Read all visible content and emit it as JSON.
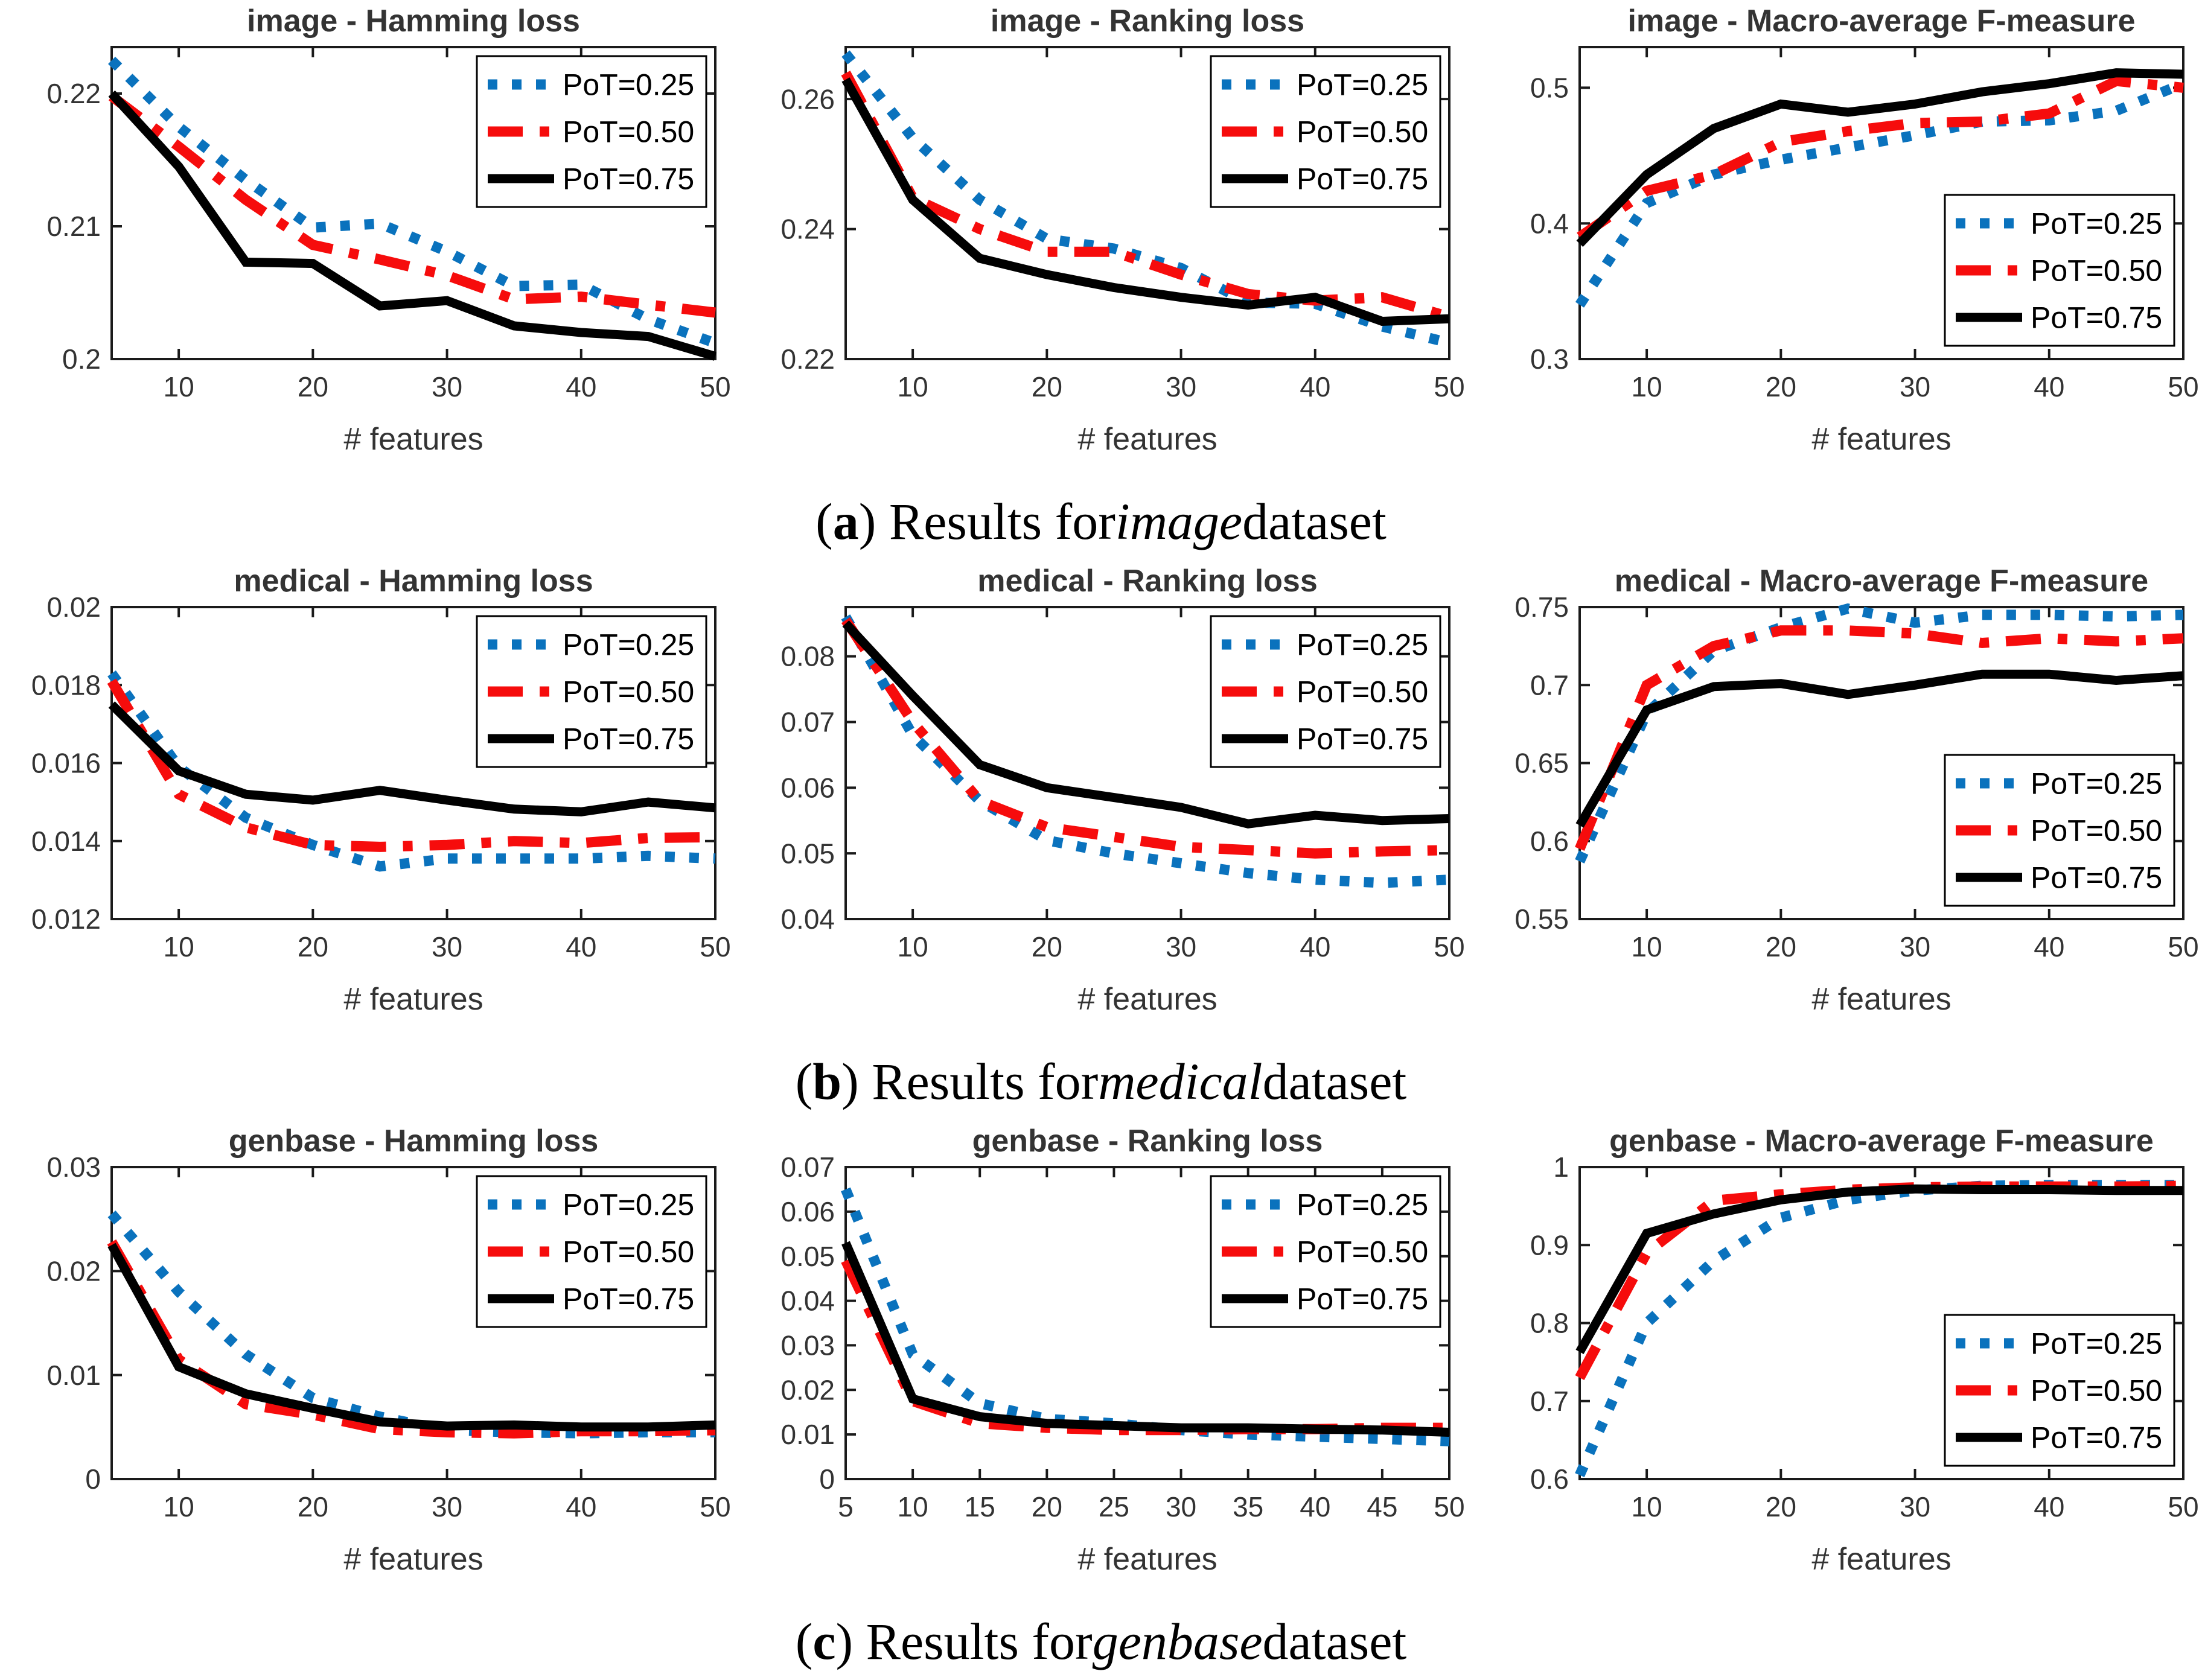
{
  "page": {
    "background": "#ffffff"
  },
  "colors": {
    "blue": "#0a72bd",
    "red": "#f60c0c",
    "black": "#000000",
    "axis": "#1a1a1a",
    "tick_text": "#333333"
  },
  "legend": {
    "entries": [
      {
        "label": "PoT=0.25",
        "color": "blue",
        "style": "dotted"
      },
      {
        "label": "PoT=0.50",
        "color": "red",
        "style": "dashdot"
      },
      {
        "label": "PoT=0.75",
        "color": "black",
        "style": "solid"
      }
    ]
  },
  "captions": [
    {
      "open": "(",
      "letter": "a",
      "mid": ") Results for ",
      "dataset": "image",
      "tail": " dataset"
    },
    {
      "open": "(",
      "letter": "b",
      "mid": ") Results for ",
      "dataset": "medical",
      "tail": " dataset"
    },
    {
      "open": "(",
      "letter": "c",
      "mid": ") Results for ",
      "dataset": "genbase",
      "tail": " dataset"
    }
  ],
  "chart_data": [
    {
      "type": "line",
      "title": "image - Hamming loss",
      "xlabel": "# features",
      "ylabel": "",
      "x": [
        5,
        10,
        15,
        20,
        25,
        30,
        35,
        40,
        45,
        50
      ],
      "xlim": [
        5,
        50
      ],
      "xticks": [
        10,
        20,
        30,
        40,
        50
      ],
      "xtick_labels": [
        "10",
        "20",
        "30",
        "40",
        "50"
      ],
      "ylim": [
        0.2,
        0.2235
      ],
      "yticks": [
        0.2,
        0.21,
        0.22
      ],
      "ytick_labels": [
        "0.2",
        "0.21",
        "0.22"
      ],
      "grid": false,
      "legend_position": "top-right",
      "series": [
        {
          "name": "PoT=0.25",
          "color": "blue",
          "style": "dotted",
          "values": [
            0.2225,
            0.2175,
            0.2135,
            0.2099,
            0.2102,
            0.2081,
            0.2055,
            0.2056,
            0.203,
            0.2012
          ]
        },
        {
          "name": "PoT=0.50",
          "color": "red",
          "style": "dashdot",
          "values": [
            0.2198,
            0.216,
            0.212,
            0.2086,
            0.2075,
            0.2063,
            0.2045,
            0.2047,
            0.2041,
            0.2035
          ]
        },
        {
          "name": "PoT=0.75",
          "color": "black",
          "style": "solid",
          "values": [
            0.22,
            0.2145,
            0.2073,
            0.2072,
            0.204,
            0.2044,
            0.2025,
            0.202,
            0.2017,
            0.2002
          ]
        }
      ]
    },
    {
      "type": "line",
      "title": "image - Ranking loss",
      "xlabel": "# features",
      "ylabel": "",
      "x": [
        5,
        10,
        15,
        20,
        25,
        30,
        35,
        40,
        45,
        50
      ],
      "xlim": [
        5,
        50
      ],
      "xticks": [
        10,
        20,
        30,
        40,
        50
      ],
      "xtick_labels": [
        "10",
        "20",
        "30",
        "40",
        "50"
      ],
      "ylim": [
        0.22,
        0.268
      ],
      "yticks": [
        0.22,
        0.24,
        0.26
      ],
      "ytick_labels": [
        "0.22",
        "0.24",
        "0.26"
      ],
      "grid": false,
      "legend_position": "top-right",
      "series": [
        {
          "name": "PoT=0.25",
          "color": "blue",
          "style": "dotted",
          "values": [
            0.267,
            0.254,
            0.2445,
            0.2385,
            0.237,
            0.234,
            0.2287,
            0.2285,
            0.225,
            0.2225
          ]
        },
        {
          "name": "PoT=0.50",
          "color": "red",
          "style": "dashdot",
          "values": [
            0.264,
            0.2448,
            0.24,
            0.2365,
            0.2365,
            0.233,
            0.23,
            0.229,
            0.2295,
            0.2265
          ]
        },
        {
          "name": "PoT=0.75",
          "color": "black",
          "style": "solid",
          "values": [
            0.263,
            0.2445,
            0.2355,
            0.233,
            0.231,
            0.2295,
            0.2283,
            0.2295,
            0.2258,
            0.2262
          ]
        }
      ]
    },
    {
      "type": "line",
      "title": "image - Macro-average F-measure",
      "xlabel": "# features",
      "ylabel": "",
      "x": [
        5,
        10,
        15,
        20,
        25,
        30,
        35,
        40,
        45,
        50
      ],
      "xlim": [
        5,
        50
      ],
      "xticks": [
        10,
        20,
        30,
        40,
        50
      ],
      "xtick_labels": [
        "10",
        "20",
        "30",
        "40",
        "50"
      ],
      "ylim": [
        0.3,
        0.53
      ],
      "yticks": [
        0.3,
        0.4,
        0.5
      ],
      "ytick_labels": [
        "0.3",
        "0.4",
        "0.5"
      ],
      "grid": false,
      "legend_position": "bottom-right",
      "series": [
        {
          "name": "PoT=0.25",
          "color": "blue",
          "style": "dotted",
          "values": [
            0.34,
            0.415,
            0.436,
            0.447,
            0.456,
            0.465,
            0.475,
            0.476,
            0.483,
            0.503
          ]
        },
        {
          "name": "PoT=0.50",
          "color": "red",
          "style": "dashdot",
          "values": [
            0.39,
            0.424,
            0.436,
            0.46,
            0.468,
            0.474,
            0.475,
            0.481,
            0.505,
            0.5
          ]
        },
        {
          "name": "PoT=0.75",
          "color": "black",
          "style": "solid",
          "values": [
            0.385,
            0.436,
            0.47,
            0.488,
            0.482,
            0.488,
            0.497,
            0.503,
            0.511,
            0.51
          ]
        }
      ]
    },
    {
      "type": "line",
      "title": "medical - Hamming loss",
      "xlabel": "# features",
      "ylabel": "",
      "x": [
        5,
        10,
        15,
        20,
        25,
        30,
        35,
        40,
        45,
        50
      ],
      "xlim": [
        5,
        50
      ],
      "xticks": [
        10,
        20,
        30,
        40,
        50
      ],
      "xtick_labels": [
        "10",
        "20",
        "30",
        "40",
        "50"
      ],
      "ylim": [
        0.012,
        0.02
      ],
      "yticks": [
        0.012,
        0.014,
        0.016,
        0.018,
        0.02
      ],
      "ytick_labels": [
        "0.012",
        "0.014",
        "0.016",
        "0.018",
        "0.02"
      ],
      "grid": false,
      "legend_position": "top-right",
      "series": [
        {
          "name": "PoT=0.25",
          "color": "blue",
          "style": "dotted",
          "values": [
            0.0183,
            0.0159,
            0.0146,
            0.0139,
            0.01335,
            0.01355,
            0.01355,
            0.01355,
            0.01362,
            0.01355
          ]
        },
        {
          "name": "PoT=0.50",
          "color": "red",
          "style": "dashdot",
          "values": [
            0.0181,
            0.0152,
            0.01435,
            0.0139,
            0.01385,
            0.0139,
            0.014,
            0.01395,
            0.01408,
            0.0141
          ]
        },
        {
          "name": "PoT=0.75",
          "color": "black",
          "style": "solid",
          "values": [
            0.0175,
            0.0158,
            0.0152,
            0.01505,
            0.0153,
            0.01505,
            0.01482,
            0.01475,
            0.015,
            0.01485
          ]
        }
      ]
    },
    {
      "type": "line",
      "title": "medical - Ranking loss",
      "xlabel": "# features",
      "ylabel": "",
      "x": [
        5,
        10,
        15,
        20,
        25,
        30,
        35,
        40,
        45,
        50
      ],
      "xlim": [
        5,
        50
      ],
      "xticks": [
        10,
        20,
        30,
        40,
        50
      ],
      "xtick_labels": [
        "10",
        "20",
        "30",
        "40",
        "50"
      ],
      "ylim": [
        0.04,
        0.0875
      ],
      "yticks": [
        0.04,
        0.05,
        0.06,
        0.07,
        0.08
      ],
      "ytick_labels": [
        "0.04",
        "0.05",
        "0.06",
        "0.07",
        "0.08"
      ],
      "grid": false,
      "legend_position": "top-right",
      "series": [
        {
          "name": "PoT=0.25",
          "color": "blue",
          "style": "dotted",
          "values": [
            0.086,
            0.068,
            0.058,
            0.052,
            0.05,
            0.0485,
            0.047,
            0.046,
            0.0455,
            0.046
          ]
        },
        {
          "name": "PoT=0.50",
          "color": "red",
          "style": "dashdot",
          "values": [
            0.0855,
            0.07,
            0.058,
            0.054,
            0.0525,
            0.051,
            0.0505,
            0.05,
            0.0503,
            0.0505
          ]
        },
        {
          "name": "PoT=0.75",
          "color": "black",
          "style": "solid",
          "values": [
            0.085,
            0.074,
            0.0635,
            0.06,
            0.0585,
            0.057,
            0.0545,
            0.0558,
            0.055,
            0.0553
          ]
        }
      ]
    },
    {
      "type": "line",
      "title": "medical - Macro-average F-measure",
      "xlabel": "# features",
      "ylabel": "",
      "x": [
        5,
        10,
        15,
        20,
        25,
        30,
        35,
        40,
        45,
        50
      ],
      "xlim": [
        5,
        50
      ],
      "xticks": [
        10,
        20,
        30,
        40,
        50
      ],
      "xtick_labels": [
        "10",
        "20",
        "30",
        "40",
        "50"
      ],
      "ylim": [
        0.55,
        0.75
      ],
      "yticks": [
        0.55,
        0.6,
        0.65,
        0.7,
        0.75
      ],
      "ytick_labels": [
        "0.55",
        "0.6",
        "0.65",
        "0.7",
        "0.75"
      ],
      "grid": false,
      "legend_position": "bottom-right",
      "series": [
        {
          "name": "PoT=0.25",
          "color": "blue",
          "style": "dotted",
          "values": [
            0.587,
            0.682,
            0.722,
            0.737,
            0.749,
            0.74,
            0.745,
            0.745,
            0.744,
            0.745
          ]
        },
        {
          "name": "PoT=0.50",
          "color": "red",
          "style": "dashdot",
          "values": [
            0.595,
            0.7,
            0.725,
            0.735,
            0.735,
            0.733,
            0.727,
            0.73,
            0.728,
            0.73
          ]
        },
        {
          "name": "PoT=0.75",
          "color": "black",
          "style": "solid",
          "values": [
            0.61,
            0.684,
            0.699,
            0.701,
            0.694,
            0.7,
            0.707,
            0.707,
            0.703,
            0.706
          ]
        }
      ]
    },
    {
      "type": "line",
      "title": "genbase - Hamming loss",
      "xlabel": "# features",
      "ylabel": "",
      "x": [
        5,
        10,
        15,
        20,
        25,
        30,
        35,
        40,
        45,
        50
      ],
      "xlim": [
        5,
        50
      ],
      "xticks": [
        10,
        20,
        30,
        40,
        50
      ],
      "xtick_labels": [
        "10",
        "20",
        "30",
        "40",
        "50"
      ],
      "ylim": [
        0,
        0.03
      ],
      "yticks": [
        0,
        0.01,
        0.02,
        0.03
      ],
      "ytick_labels": [
        "0",
        "0.01",
        "0.02",
        "0.03"
      ],
      "grid": false,
      "legend_position": "top-right",
      "series": [
        {
          "name": "PoT=0.25",
          "color": "blue",
          "style": "dotted",
          "values": [
            0.0255,
            0.018,
            0.012,
            0.0078,
            0.006,
            0.0047,
            0.0045,
            0.0044,
            0.0045,
            0.0045
          ]
        },
        {
          "name": "PoT=0.50",
          "color": "red",
          "style": "dashdot",
          "values": [
            0.0228,
            0.0115,
            0.0072,
            0.0062,
            0.0048,
            0.0045,
            0.0044,
            0.0046,
            0.0046,
            0.0047
          ]
        },
        {
          "name": "PoT=0.75",
          "color": "black",
          "style": "solid",
          "values": [
            0.0225,
            0.0108,
            0.0082,
            0.0068,
            0.0055,
            0.0051,
            0.0052,
            0.005,
            0.005,
            0.0052
          ]
        }
      ]
    },
    {
      "type": "line",
      "title": "genbase - Ranking loss",
      "xlabel": "# features",
      "ylabel": "",
      "x": [
        5,
        10,
        15,
        20,
        25,
        30,
        35,
        40,
        45,
        50
      ],
      "xlim": [
        5,
        50
      ],
      "xticks": [
        5,
        10,
        15,
        20,
        25,
        30,
        35,
        40,
        45,
        50
      ],
      "xtick_labels": [
        "5",
        "10",
        "15",
        "20",
        "25",
        "30",
        "35",
        "40",
        "45",
        "50"
      ],
      "ylim": [
        0,
        0.07
      ],
      "yticks": [
        0,
        0.01,
        0.02,
        0.03,
        0.04,
        0.05,
        0.06,
        0.07
      ],
      "ytick_labels": [
        "0",
        "0.01",
        "0.02",
        "0.03",
        "0.04",
        "0.05",
        "0.06",
        "0.07"
      ],
      "grid": false,
      "legend_position": "top-right",
      "series": [
        {
          "name": "PoT=0.25",
          "color": "blue",
          "style": "dotted",
          "values": [
            0.065,
            0.028,
            0.017,
            0.0135,
            0.0125,
            0.011,
            0.01,
            0.0095,
            0.009,
            0.0085
          ]
        },
        {
          "name": "PoT=0.50",
          "color": "red",
          "style": "dashdot",
          "values": [
            0.049,
            0.0175,
            0.0125,
            0.0115,
            0.011,
            0.011,
            0.0112,
            0.0112,
            0.0115,
            0.0115
          ]
        },
        {
          "name": "PoT=0.75",
          "color": "black",
          "style": "solid",
          "values": [
            0.053,
            0.018,
            0.014,
            0.0125,
            0.012,
            0.0115,
            0.0115,
            0.0112,
            0.011,
            0.0105
          ]
        }
      ]
    },
    {
      "type": "line",
      "title": "genbase - Macro-average F-measure",
      "xlabel": "# features",
      "ylabel": "",
      "x": [
        5,
        10,
        15,
        20,
        25,
        30,
        35,
        40,
        45,
        50
      ],
      "xlim": [
        5,
        50
      ],
      "xticks": [
        10,
        20,
        30,
        40,
        50
      ],
      "xtick_labels": [
        "10",
        "20",
        "30",
        "40",
        "50"
      ],
      "ylim": [
        0.6,
        1.0
      ],
      "yticks": [
        0.6,
        0.7,
        0.8,
        0.9,
        1.0
      ],
      "ytick_labels": [
        "0.6",
        "0.7",
        "0.8",
        "0.9",
        "1"
      ],
      "grid": false,
      "legend_position": "bottom-right",
      "series": [
        {
          "name": "PoT=0.25",
          "color": "blue",
          "style": "dotted",
          "values": [
            0.605,
            0.8,
            0.88,
            0.935,
            0.958,
            0.97,
            0.976,
            0.977,
            0.977,
            0.977
          ]
        },
        {
          "name": "PoT=0.50",
          "color": "red",
          "style": "dashdot",
          "values": [
            0.73,
            0.89,
            0.957,
            0.965,
            0.971,
            0.974,
            0.975,
            0.975,
            0.975,
            0.976
          ]
        },
        {
          "name": "PoT=0.75",
          "color": "black",
          "style": "solid",
          "values": [
            0.763,
            0.915,
            0.94,
            0.958,
            0.968,
            0.972,
            0.971,
            0.971,
            0.97,
            0.97
          ]
        }
      ]
    }
  ]
}
